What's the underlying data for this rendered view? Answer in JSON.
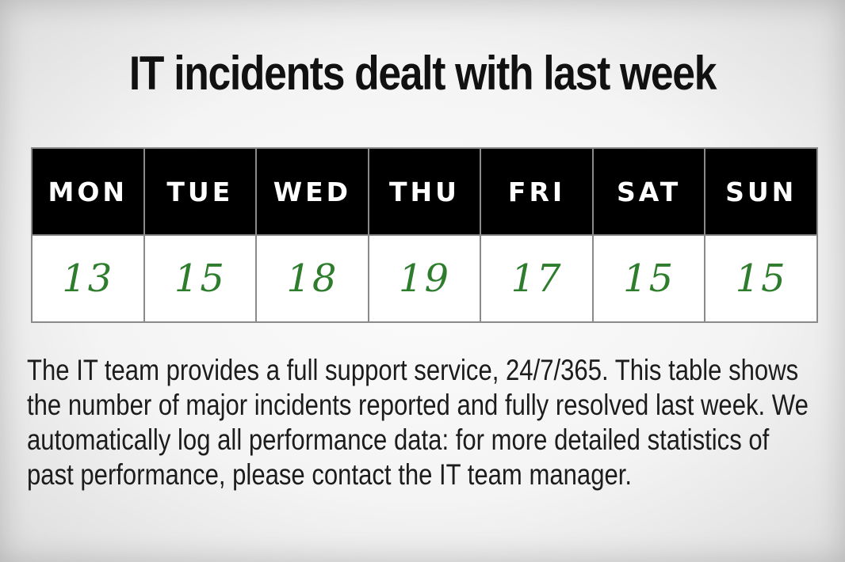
{
  "title": "IT incidents dealt with last week",
  "chart_data": {
    "type": "table",
    "title": "IT incidents dealt with last week",
    "categories": [
      "MON",
      "TUE",
      "WED",
      "THU",
      "FRI",
      "SAT",
      "SUN"
    ],
    "values": [
      13,
      15,
      18,
      19,
      17,
      15,
      15
    ]
  },
  "description": "The IT team provides a full support service, 24/7/365. This table shows the number of major incidents reported and fully resolved last week. We automatically log all performance data: for more detailed statistics of past performance, please contact the IT team manager.",
  "colors": {
    "header_bg": "#000000",
    "header_text": "#ffffff",
    "value_text": "#2d7d2d"
  }
}
